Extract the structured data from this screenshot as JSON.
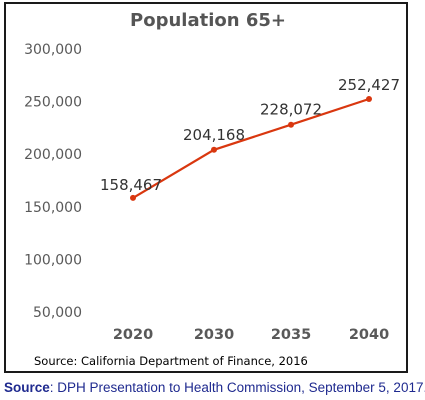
{
  "colors": {
    "line": "#d9370f",
    "axis_text": "#595959",
    "footer_text": "#1f2a8f"
  },
  "chart_data": {
    "type": "line",
    "title": "Population 65+",
    "categories": [
      "2020",
      "2030",
      "2035",
      "2040"
    ],
    "values": [
      158467,
      204168,
      228072,
      252427
    ],
    "data_labels": [
      "158,467",
      "204,168",
      "228,072",
      "252,427"
    ],
    "y_ticks": [
      "50,000",
      "100,000",
      "150,000",
      "200,000",
      "250,000",
      "300,000"
    ],
    "ylim": [
      50000,
      300000
    ],
    "grid": false,
    "legend": "none",
    "source_note": "Source: California Department of Finance, 2016"
  },
  "footer": {
    "source_label": "Source",
    "source_text": ":  DPH Presentation to Health Commission, September 5, 2017."
  }
}
